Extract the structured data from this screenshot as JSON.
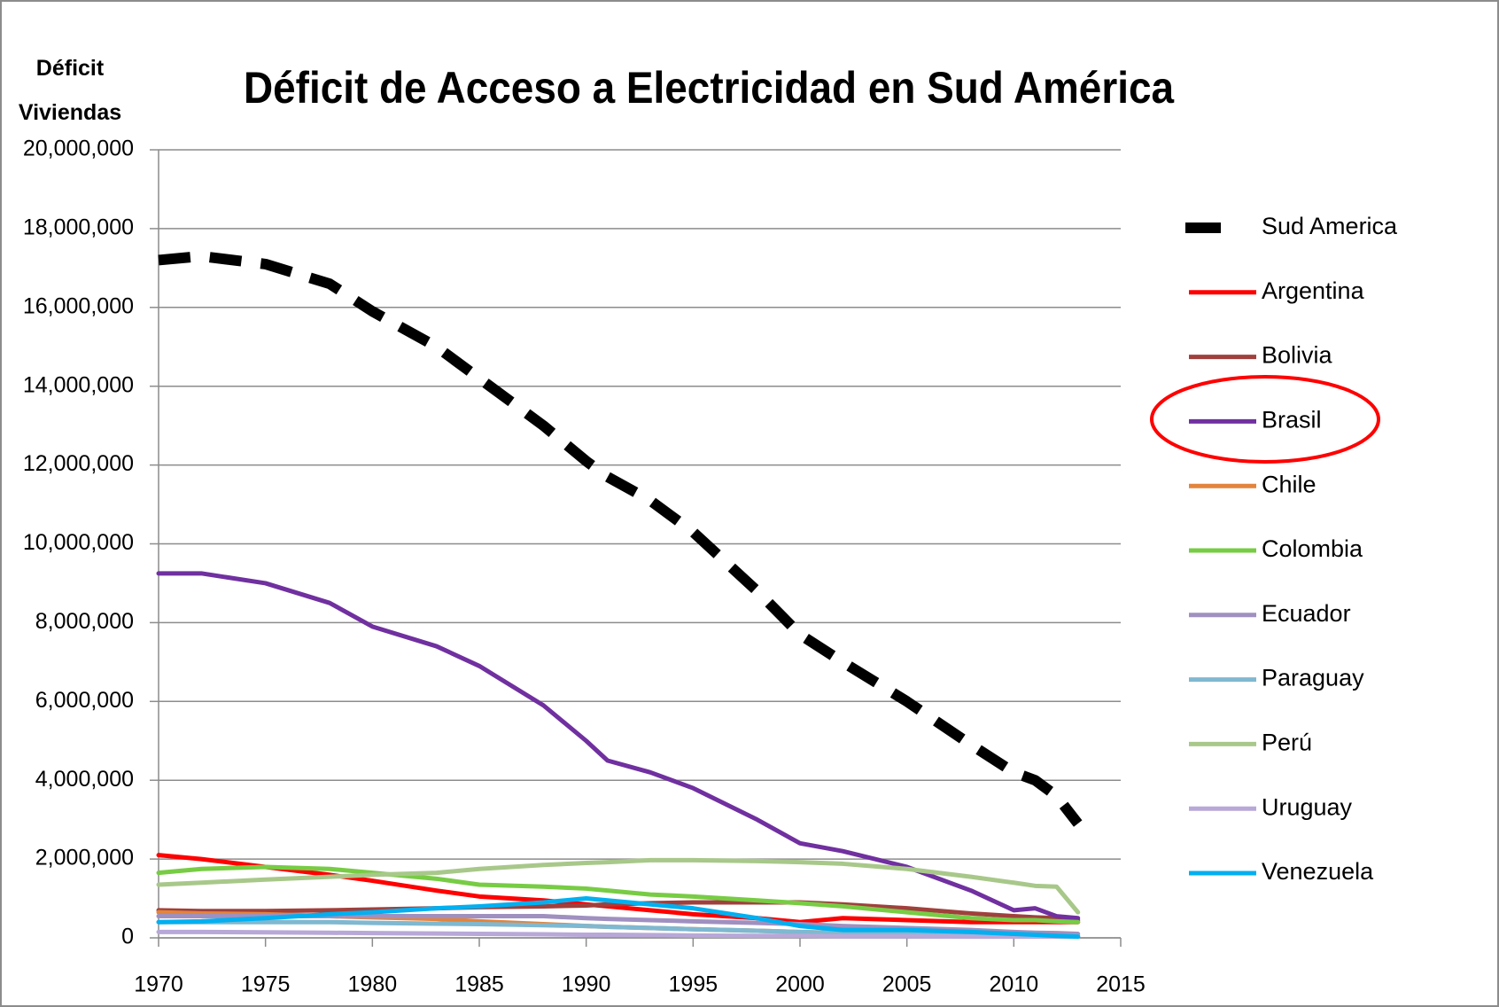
{
  "chart_data": {
    "type": "line",
    "title": "Déficit de Acceso a Electricidad en Sud América",
    "y_label": "Déficit Viviendas",
    "x": [
      1970,
      1972,
      1975,
      1978,
      1980,
      1983,
      1985,
      1988,
      1990,
      1991,
      1993,
      1995,
      1998,
      2000,
      2002,
      2005,
      2008,
      2010,
      2011,
      2012,
      2013
    ],
    "xlim": [
      1970,
      2015
    ],
    "xticks": [
      1970,
      1975,
      1980,
      1985,
      1990,
      1995,
      2000,
      2005,
      2010,
      2015
    ],
    "ylim": [
      0,
      20000000
    ],
    "yticks": [
      0,
      {
        "value": 2000000,
        "label": "2,000,000"
      },
      {
        "value": 4000000,
        "label": "4,000,000"
      },
      {
        "value": 6000000,
        "label": "6,000,000"
      },
      {
        "value": 8000000,
        "label": "8,000,000"
      },
      {
        "value": 10000000,
        "label": "10,000,000"
      },
      {
        "value": 12000000,
        "label": "12,000,000"
      },
      {
        "value": 14000000,
        "label": "14,000,000"
      },
      {
        "value": 16000000,
        "label": "16,000,000"
      },
      {
        "value": 18000000,
        "label": "18,000,000"
      },
      {
        "value": 20000000,
        "label": "20,000,000"
      }
    ],
    "grid": true,
    "legend": "right",
    "series": [
      {
        "name": "Sud America",
        "color": "#000000",
        "dashed": true,
        "values": [
          17200000,
          17300000,
          17100000,
          16600000,
          15900000,
          15000000,
          14200000,
          13000000,
          12100000,
          11700000,
          11100000,
          10300000,
          8800000,
          7700000,
          7000000,
          6000000,
          4900000,
          4200000,
          4000000,
          3600000,
          2900000
        ]
      },
      {
        "name": "Argentina",
        "color": "#ff0000",
        "values": [
          2100000,
          2000000,
          1800000,
          1600000,
          1450000,
          1200000,
          1050000,
          950000,
          850000,
          800000,
          700000,
          600000,
          500000,
          400000,
          500000,
          450000,
          400000,
          400000,
          400000,
          400000,
          400000
        ]
      },
      {
        "name": "Bolivia",
        "color": "#a0403c",
        "values": [
          700000,
          680000,
          680000,
          700000,
          720000,
          750000,
          780000,
          800000,
          820000,
          850000,
          880000,
          900000,
          900000,
          900000,
          850000,
          750000,
          620000,
          550000,
          520000,
          500000,
          450000
        ]
      },
      {
        "name": "Brasil",
        "color": "#7030a0",
        "values": [
          9250000,
          9250000,
          9000000,
          8500000,
          7900000,
          7400000,
          6900000,
          5900000,
          5000000,
          4500000,
          4200000,
          3800000,
          3000000,
          2400000,
          2200000,
          1800000,
          1200000,
          700000,
          750000,
          550000,
          500000
        ]
      },
      {
        "name": "Chile",
        "color": "#e3843c",
        "values": [
          650000,
          620000,
          600000,
          550000,
          520000,
          480000,
          420000,
          350000,
          300000,
          280000,
          250000,
          220000,
          180000,
          150000,
          120000,
          100000,
          80000,
          60000,
          50000,
          50000,
          40000
        ]
      },
      {
        "name": "Colombia",
        "color": "#77cc44",
        "values": [
          1650000,
          1750000,
          1800000,
          1750000,
          1650000,
          1500000,
          1350000,
          1300000,
          1250000,
          1200000,
          1100000,
          1050000,
          950000,
          880000,
          800000,
          650000,
          500000,
          450000,
          450000,
          420000,
          400000
        ]
      },
      {
        "name": "Ecuador",
        "color": "#a090c0",
        "values": [
          550000,
          550000,
          550000,
          550000,
          550000,
          550000,
          550000,
          550000,
          500000,
          480000,
          450000,
          420000,
          380000,
          350000,
          300000,
          250000,
          200000,
          150000,
          130000,
          120000,
          100000
        ]
      },
      {
        "name": "Paraguay",
        "color": "#7fb8d0",
        "values": [
          400000,
          400000,
          400000,
          400000,
          380000,
          360000,
          350000,
          320000,
          300000,
          280000,
          250000,
          220000,
          180000,
          150000,
          120000,
          100000,
          80000,
          60000,
          50000,
          50000,
          40000
        ]
      },
      {
        "name": "Perú",
        "color": "#a8c88a",
        "values": [
          1350000,
          1400000,
          1480000,
          1550000,
          1600000,
          1650000,
          1750000,
          1850000,
          1900000,
          1920000,
          1970000,
          1970000,
          1950000,
          1920000,
          1880000,
          1750000,
          1550000,
          1400000,
          1320000,
          1300000,
          650000
        ]
      },
      {
        "name": "Uruguay",
        "color": "#b8a8d8",
        "values": [
          150000,
          150000,
          140000,
          130000,
          120000,
          110000,
          100000,
          90000,
          80000,
          80000,
          70000,
          60000,
          50000,
          50000,
          40000,
          40000,
          30000,
          30000,
          30000,
          30000,
          30000
        ]
      },
      {
        "name": "Venezuela",
        "color": "#00b0f0",
        "values": [
          400000,
          420000,
          500000,
          600000,
          650000,
          750000,
          800000,
          900000,
          1000000,
          950000,
          850000,
          750000,
          500000,
          300000,
          200000,
          200000,
          150000,
          100000,
          80000,
          50000,
          30000
        ]
      }
    ]
  }
}
